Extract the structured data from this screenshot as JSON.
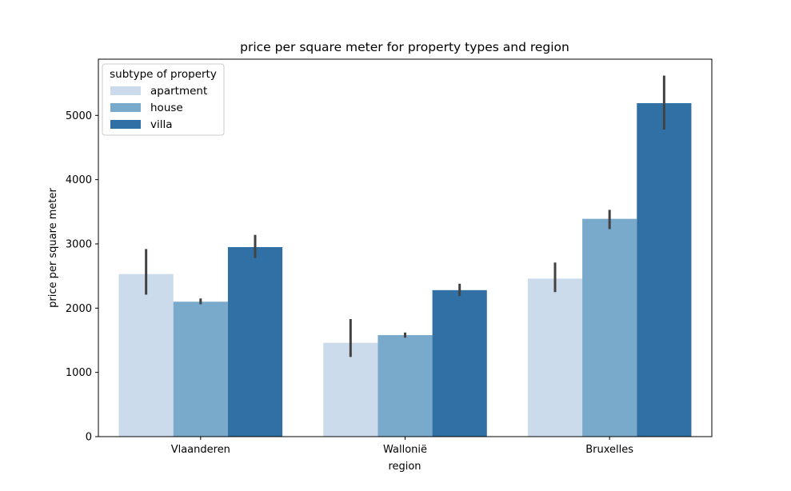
{
  "chart_data": {
    "type": "bar",
    "title": "price per square meter for property types and region",
    "xlabel": "region",
    "ylabel": "price per square meter",
    "categories": [
      "Vlaanderen",
      "Wallonië",
      "Bruxelles"
    ],
    "ylim": [
      0,
      5875
    ],
    "yticks": [
      0,
      1000,
      2000,
      3000,
      4000,
      5000
    ],
    "grid": false,
    "legend": {
      "title": "subtype of property",
      "placement": "top-left"
    },
    "series": [
      {
        "name": "apartment",
        "color": "#cbdbeb",
        "values": [
          2530,
          1460,
          2460
        ],
        "err_low": [
          2210,
          1240,
          2250
        ],
        "err_high": [
          2920,
          1830,
          2710
        ]
      },
      {
        "name": "house",
        "color": "#79a9cb",
        "values": [
          2100,
          1580,
          3390
        ],
        "err_low": [
          2060,
          1540,
          3230
        ],
        "err_high": [
          2150,
          1620,
          3530
        ]
      },
      {
        "name": "villa",
        "color": "#3170a4",
        "values": [
          2950,
          2280,
          5190
        ],
        "err_low": [
          2780,
          2190,
          4780
        ],
        "err_high": [
          3140,
          2380,
          5620
        ]
      }
    ]
  }
}
